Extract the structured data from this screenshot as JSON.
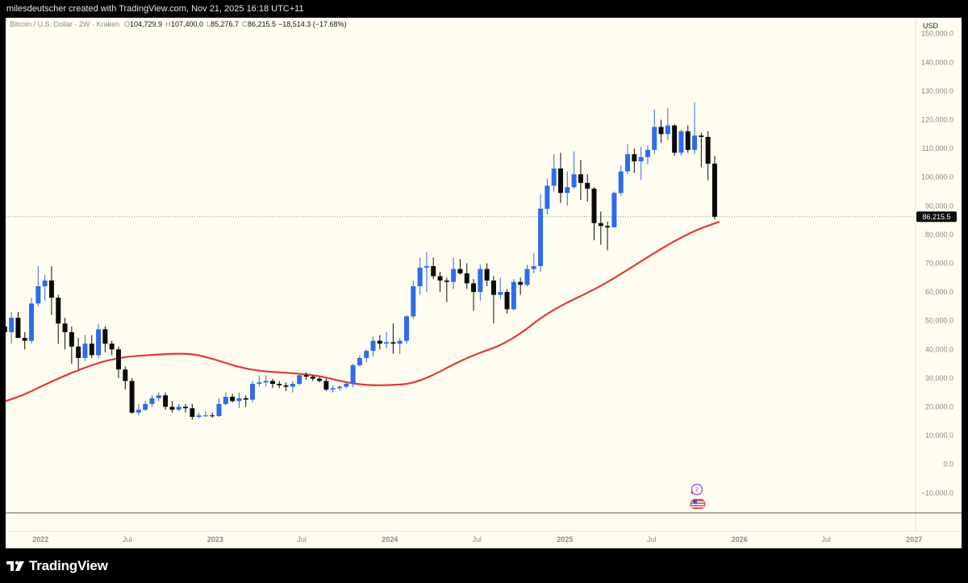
{
  "header": {
    "caption": "milesdeutscher created with TradingView.com, Nov 21, 2025 16:18 UTC+11"
  },
  "legend": {
    "symbol": "Bitcoin / U.S. Dollar · 2W · Kraken",
    "open_label": "O",
    "open_value": "104,729.9",
    "high_label": "H",
    "high_value": "107,400.0",
    "low_label": "L",
    "low_value": "85,276.7",
    "close_label": "C",
    "close_value": "86,215.5",
    "change": "−18,514.3 (−17.68%)"
  },
  "currency": "USD",
  "price_tag": "86,215.5",
  "footer": {
    "brand": "TradingView"
  },
  "colors": {
    "background": "#fffdf0",
    "up": "#2f6bea",
    "down": "#0b0b0b",
    "ma": "#e03a3a",
    "axis_text": "#8a8a8a"
  },
  "chart_data": {
    "type": "candlestick",
    "interval": "2W",
    "y_axis": {
      "label": "USD",
      "ticks": [
        -10000,
        0,
        10000,
        20000,
        30000,
        40000,
        50000,
        60000,
        70000,
        80000,
        90000,
        100000,
        110000,
        120000,
        130000,
        140000,
        150000
      ],
      "tick_labels": [
        "−10,000.0",
        "0.0",
        "10,000.0",
        "20,000.0",
        "30,000.0",
        "40,000.0",
        "50,000.0",
        "60,000.0",
        "70,000.0",
        "80,000.0",
        "90,000.0",
        "100,000.0",
        "110,000.0",
        "120,000.0",
        "130,000.0",
        "140,000.0",
        "150,000.0"
      ]
    },
    "x_axis": {
      "tick_labels": [
        "2022",
        "Jul",
        "2023",
        "Jul",
        "2024",
        "Jul",
        "2025",
        "Jul",
        "2026",
        "Jul",
        "2027"
      ],
      "tick_dates": [
        "2022-01-01",
        "2022-07-01",
        "2023-01-01",
        "2023-07-01",
        "2024-01-01",
        "2024-07-01",
        "2025-01-01",
        "2025-07-01",
        "2026-01-01",
        "2026-07-01",
        "2027-01-01"
      ],
      "range": [
        "2021-10-20",
        "2027-04-10"
      ]
    },
    "last_close": 86215.5,
    "candles": [
      {
        "date": "2021-10-18",
        "o": 48000,
        "h": 51000,
        "l": 44000,
        "c": 46000
      },
      {
        "date": "2021-11-01",
        "o": 46000,
        "h": 53000,
        "l": 42000,
        "c": 51000
      },
      {
        "date": "2021-11-15",
        "o": 51000,
        "h": 53000,
        "l": 45000,
        "c": 44000
      },
      {
        "date": "2021-11-29",
        "o": 44000,
        "h": 46000,
        "l": 40000,
        "c": 43000
      },
      {
        "date": "2021-12-13",
        "o": 43000,
        "h": 58000,
        "l": 42000,
        "c": 56000
      },
      {
        "date": "2021-12-27",
        "o": 56000,
        "h": 69000,
        "l": 55000,
        "c": 62000
      },
      {
        "date": "2022-01-10",
        "o": 62000,
        "h": 66000,
        "l": 57000,
        "c": 64000
      },
      {
        "date": "2022-01-24",
        "o": 64000,
        "h": 69000,
        "l": 52000,
        "c": 58000
      },
      {
        "date": "2022-02-07",
        "o": 58000,
        "h": 59000,
        "l": 42000,
        "c": 49000
      },
      {
        "date": "2022-02-21",
        "o": 49000,
        "h": 51000,
        "l": 40000,
        "c": 46000
      },
      {
        "date": "2022-03-07",
        "o": 46000,
        "h": 48000,
        "l": 35000,
        "c": 41000
      },
      {
        "date": "2022-03-21",
        "o": 41000,
        "h": 44000,
        "l": 33000,
        "c": 37000
      },
      {
        "date": "2022-04-04",
        "o": 37000,
        "h": 45000,
        "l": 36000,
        "c": 42000
      },
      {
        "date": "2022-04-18",
        "o": 42000,
        "h": 45000,
        "l": 37000,
        "c": 38000
      },
      {
        "date": "2022-05-02",
        "o": 38000,
        "h": 49000,
        "l": 37000,
        "c": 47000
      },
      {
        "date": "2022-05-16",
        "o": 47000,
        "h": 48000,
        "l": 39000,
        "c": 42000
      },
      {
        "date": "2022-05-30",
        "o": 42000,
        "h": 43000,
        "l": 38000,
        "c": 40000
      },
      {
        "date": "2022-06-13",
        "o": 40000,
        "h": 41000,
        "l": 30000,
        "c": 33000
      },
      {
        "date": "2022-06-27",
        "o": 33000,
        "h": 34000,
        "l": 26000,
        "c": 29000
      },
      {
        "date": "2022-07-11",
        "o": 29000,
        "h": 30000,
        "l": 17600,
        "c": 18000
      },
      {
        "date": "2022-07-25",
        "o": 18000,
        "h": 21000,
        "l": 17000,
        "c": 19000
      },
      {
        "date": "2022-08-08",
        "o": 19000,
        "h": 22000,
        "l": 18500,
        "c": 21000
      },
      {
        "date": "2022-08-22",
        "o": 21000,
        "h": 24000,
        "l": 20000,
        "c": 23000
      },
      {
        "date": "2022-09-05",
        "o": 23000,
        "h": 25000,
        "l": 22000,
        "c": 24000
      },
      {
        "date": "2022-09-19",
        "o": 24000,
        "h": 25000,
        "l": 19000,
        "c": 20000
      },
      {
        "date": "2022-10-03",
        "o": 20000,
        "h": 22000,
        "l": 18000,
        "c": 19000
      },
      {
        "date": "2022-10-17",
        "o": 19000,
        "h": 21000,
        "l": 18500,
        "c": 20000
      },
      {
        "date": "2022-10-31",
        "o": 20000,
        "h": 21000,
        "l": 18000,
        "c": 19500
      },
      {
        "date": "2022-11-14",
        "o": 19500,
        "h": 21000,
        "l": 15500,
        "c": 16500
      },
      {
        "date": "2022-11-28",
        "o": 16500,
        "h": 18000,
        "l": 16000,
        "c": 17000
      },
      {
        "date": "2022-12-12",
        "o": 17000,
        "h": 18500,
        "l": 16500,
        "c": 17000
      },
      {
        "date": "2022-12-26",
        "o": 17000,
        "h": 18000,
        "l": 16200,
        "c": 16800
      },
      {
        "date": "2023-01-09",
        "o": 16800,
        "h": 23000,
        "l": 16500,
        "c": 21000
      },
      {
        "date": "2023-01-23",
        "o": 21000,
        "h": 25000,
        "l": 20500,
        "c": 23500
      },
      {
        "date": "2023-02-06",
        "o": 23500,
        "h": 24500,
        "l": 21500,
        "c": 22000
      },
      {
        "date": "2023-02-20",
        "o": 22000,
        "h": 25000,
        "l": 19500,
        "c": 23000
      },
      {
        "date": "2023-03-06",
        "o": 23000,
        "h": 24000,
        "l": 20000,
        "c": 22500
      },
      {
        "date": "2023-03-20",
        "o": 22500,
        "h": 29000,
        "l": 21500,
        "c": 28000
      },
      {
        "date": "2023-04-03",
        "o": 28000,
        "h": 31000,
        "l": 27000,
        "c": 28500
      },
      {
        "date": "2023-04-17",
        "o": 28500,
        "h": 31000,
        "l": 27000,
        "c": 29000
      },
      {
        "date": "2023-05-01",
        "o": 29000,
        "h": 29800,
        "l": 26500,
        "c": 28000
      },
      {
        "date": "2023-05-15",
        "o": 28000,
        "h": 29000,
        "l": 26500,
        "c": 27500
      },
      {
        "date": "2023-05-29",
        "o": 27500,
        "h": 28500,
        "l": 25500,
        "c": 27000
      },
      {
        "date": "2023-06-12",
        "o": 27000,
        "h": 29000,
        "l": 25000,
        "c": 28000
      },
      {
        "date": "2023-06-26",
        "o": 28000,
        "h": 31500,
        "l": 27500,
        "c": 31000
      },
      {
        "date": "2023-07-10",
        "o": 31000,
        "h": 32000,
        "l": 29500,
        "c": 30500
      },
      {
        "date": "2023-07-24",
        "o": 30500,
        "h": 31000,
        "l": 29000,
        "c": 29800
      },
      {
        "date": "2023-08-07",
        "o": 29800,
        "h": 30500,
        "l": 28500,
        "c": 29000
      },
      {
        "date": "2023-08-21",
        "o": 29000,
        "h": 30000,
        "l": 25500,
        "c": 26000
      },
      {
        "date": "2023-09-04",
        "o": 26000,
        "h": 27500,
        "l": 25000,
        "c": 26500
      },
      {
        "date": "2023-09-18",
        "o": 26500,
        "h": 27500,
        "l": 25500,
        "c": 27000
      },
      {
        "date": "2023-10-02",
        "o": 27000,
        "h": 28500,
        "l": 26500,
        "c": 28000
      },
      {
        "date": "2023-10-16",
        "o": 28000,
        "h": 35000,
        "l": 26800,
        "c": 34500
      },
      {
        "date": "2023-10-30",
        "o": 34500,
        "h": 38000,
        "l": 34000,
        "c": 37000
      },
      {
        "date": "2023-11-13",
        "o": 37000,
        "h": 40000,
        "l": 35500,
        "c": 39500
      },
      {
        "date": "2023-11-27",
        "o": 39500,
        "h": 44500,
        "l": 37500,
        "c": 43000
      },
      {
        "date": "2023-12-11",
        "o": 43000,
        "h": 45000,
        "l": 40000,
        "c": 42000
      },
      {
        "date": "2023-12-25",
        "o": 42000,
        "h": 46000,
        "l": 40500,
        "c": 42500
      },
      {
        "date": "2024-01-08",
        "o": 42500,
        "h": 49000,
        "l": 38500,
        "c": 42000
      },
      {
        "date": "2024-01-22",
        "o": 42000,
        "h": 44000,
        "l": 38500,
        "c": 43000
      },
      {
        "date": "2024-02-05",
        "o": 43000,
        "h": 52000,
        "l": 42000,
        "c": 51500
      },
      {
        "date": "2024-02-19",
        "o": 51500,
        "h": 64000,
        "l": 50500,
        "c": 62000
      },
      {
        "date": "2024-03-04",
        "o": 62000,
        "h": 72000,
        "l": 59000,
        "c": 68500
      },
      {
        "date": "2024-03-18",
        "o": 68500,
        "h": 73800,
        "l": 60000,
        "c": 69000
      },
      {
        "date": "2024-04-01",
        "o": 69000,
        "h": 72000,
        "l": 64500,
        "c": 65500
      },
      {
        "date": "2024-04-15",
        "o": 65500,
        "h": 67000,
        "l": 60000,
        "c": 64000
      },
      {
        "date": "2024-04-29",
        "o": 64000,
        "h": 65000,
        "l": 56500,
        "c": 63500
      },
      {
        "date": "2024-05-13",
        "o": 63500,
        "h": 72000,
        "l": 61000,
        "c": 68000
      },
      {
        "date": "2024-05-27",
        "o": 68000,
        "h": 71500,
        "l": 66000,
        "c": 66500
      },
      {
        "date": "2024-06-10",
        "o": 66500,
        "h": 70000,
        "l": 61000,
        "c": 63000
      },
      {
        "date": "2024-06-24",
        "o": 63000,
        "h": 64500,
        "l": 53500,
        "c": 60000
      },
      {
        "date": "2024-07-08",
        "o": 60000,
        "h": 69500,
        "l": 57000,
        "c": 68000
      },
      {
        "date": "2024-07-22",
        "o": 68000,
        "h": 70000,
        "l": 62000,
        "c": 64000
      },
      {
        "date": "2024-08-05",
        "o": 64000,
        "h": 65500,
        "l": 49000,
        "c": 59000
      },
      {
        "date": "2024-08-19",
        "o": 59000,
        "h": 65000,
        "l": 57500,
        "c": 60000
      },
      {
        "date": "2024-09-02",
        "o": 60000,
        "h": 61000,
        "l": 52500,
        "c": 54000
      },
      {
        "date": "2024-09-16",
        "o": 54000,
        "h": 64500,
        "l": 53500,
        "c": 63500
      },
      {
        "date": "2024-09-30",
        "o": 63500,
        "h": 65000,
        "l": 59000,
        "c": 62500
      },
      {
        "date": "2024-10-14",
        "o": 62500,
        "h": 69500,
        "l": 62000,
        "c": 68000
      },
      {
        "date": "2024-10-28",
        "o": 68000,
        "h": 73500,
        "l": 66500,
        "c": 69000
      },
      {
        "date": "2024-11-11",
        "o": 69000,
        "h": 94000,
        "l": 67000,
        "c": 89000
      },
      {
        "date": "2024-11-25",
        "o": 89000,
        "h": 99500,
        "l": 87000,
        "c": 97000
      },
      {
        "date": "2024-12-09",
        "o": 97000,
        "h": 108000,
        "l": 95000,
        "c": 103000
      },
      {
        "date": "2024-12-23",
        "o": 103000,
        "h": 108500,
        "l": 91000,
        "c": 94500
      },
      {
        "date": "2025-01-06",
        "o": 94500,
        "h": 102000,
        "l": 90000,
        "c": 96500
      },
      {
        "date": "2025-01-20",
        "o": 96500,
        "h": 109000,
        "l": 96000,
        "c": 101000
      },
      {
        "date": "2025-02-03",
        "o": 101000,
        "h": 106000,
        "l": 92000,
        "c": 98000
      },
      {
        "date": "2025-02-17",
        "o": 98000,
        "h": 101000,
        "l": 91500,
        "c": 96000
      },
      {
        "date": "2025-03-03",
        "o": 96000,
        "h": 96500,
        "l": 78000,
        "c": 84000
      },
      {
        "date": "2025-03-17",
        "o": 84000,
        "h": 88000,
        "l": 76500,
        "c": 83000
      },
      {
        "date": "2025-03-31",
        "o": 83000,
        "h": 84500,
        "l": 74500,
        "c": 82500
      },
      {
        "date": "2025-04-14",
        "o": 82500,
        "h": 95000,
        "l": 83000,
        "c": 94500
      },
      {
        "date": "2025-04-28",
        "o": 94500,
        "h": 104000,
        "l": 93500,
        "c": 102000
      },
      {
        "date": "2025-05-12",
        "o": 102000,
        "h": 111500,
        "l": 101000,
        "c": 108000
      },
      {
        "date": "2025-05-26",
        "o": 108000,
        "h": 110000,
        "l": 101500,
        "c": 105500
      },
      {
        "date": "2025-06-09",
        "o": 105500,
        "h": 110500,
        "l": 99000,
        "c": 107000
      },
      {
        "date": "2025-06-23",
        "o": 107000,
        "h": 111000,
        "l": 104500,
        "c": 109500
      },
      {
        "date": "2025-07-07",
        "o": 109500,
        "h": 123500,
        "l": 108000,
        "c": 117500
      },
      {
        "date": "2025-07-21",
        "o": 117500,
        "h": 120000,
        "l": 112000,
        "c": 115000
      },
      {
        "date": "2025-08-04",
        "o": 115000,
        "h": 124000,
        "l": 113000,
        "c": 118000
      },
      {
        "date": "2025-08-18",
        "o": 118000,
        "h": 118500,
        "l": 107500,
        "c": 108500
      },
      {
        "date": "2025-09-01",
        "o": 108500,
        "h": 116500,
        "l": 107500,
        "c": 116000
      },
      {
        "date": "2025-09-15",
        "o": 116000,
        "h": 118000,
        "l": 108500,
        "c": 109500
      },
      {
        "date": "2025-09-29",
        "o": 109500,
        "h": 126000,
        "l": 108000,
        "c": 114500
      },
      {
        "date": "2025-10-13",
        "o": 114500,
        "h": 115500,
        "l": 103500,
        "c": 114000
      },
      {
        "date": "2025-10-27",
        "o": 114000,
        "h": 116000,
        "l": 98900,
        "c": 104700
      },
      {
        "date": "2025-11-10",
        "o": 104729.9,
        "h": 107400,
        "l": 85276.7,
        "c": 86215.5
      }
    ],
    "moving_average": [
      {
        "date": "2021-10-20",
        "v": 22000
      },
      {
        "date": "2021-11-25",
        "v": 24000
      },
      {
        "date": "2022-01-01",
        "v": 27000
      },
      {
        "date": "2022-02-15",
        "v": 30500
      },
      {
        "date": "2022-04-01",
        "v": 33500
      },
      {
        "date": "2022-05-15",
        "v": 36000
      },
      {
        "date": "2022-07-01",
        "v": 37500
      },
      {
        "date": "2022-08-15",
        "v": 38000
      },
      {
        "date": "2022-10-01",
        "v": 38500
      },
      {
        "date": "2022-11-15",
        "v": 38500
      },
      {
        "date": "2023-01-01",
        "v": 36500
      },
      {
        "date": "2023-02-15",
        "v": 34000
      },
      {
        "date": "2023-04-01",
        "v": 32500
      },
      {
        "date": "2023-05-15",
        "v": 32000
      },
      {
        "date": "2023-07-01",
        "v": 31500
      },
      {
        "date": "2023-08-15",
        "v": 30500
      },
      {
        "date": "2023-10-01",
        "v": 28500
      },
      {
        "date": "2023-11-15",
        "v": 27500
      },
      {
        "date": "2024-01-01",
        "v": 27500
      },
      {
        "date": "2024-02-15",
        "v": 28000
      },
      {
        "date": "2024-04-01",
        "v": 31000
      },
      {
        "date": "2024-05-15",
        "v": 35000
      },
      {
        "date": "2024-07-01",
        "v": 38500
      },
      {
        "date": "2024-08-15",
        "v": 41000
      },
      {
        "date": "2024-10-01",
        "v": 45500
      },
      {
        "date": "2024-11-15",
        "v": 51500
      },
      {
        "date": "2025-01-01",
        "v": 56000
      },
      {
        "date": "2025-02-15",
        "v": 59500
      },
      {
        "date": "2025-04-01",
        "v": 63500
      },
      {
        "date": "2025-05-15",
        "v": 68000
      },
      {
        "date": "2025-07-01",
        "v": 73000
      },
      {
        "date": "2025-08-15",
        "v": 77500
      },
      {
        "date": "2025-10-01",
        "v": 81500
      },
      {
        "date": "2025-11-20",
        "v": 84500
      }
    ]
  }
}
